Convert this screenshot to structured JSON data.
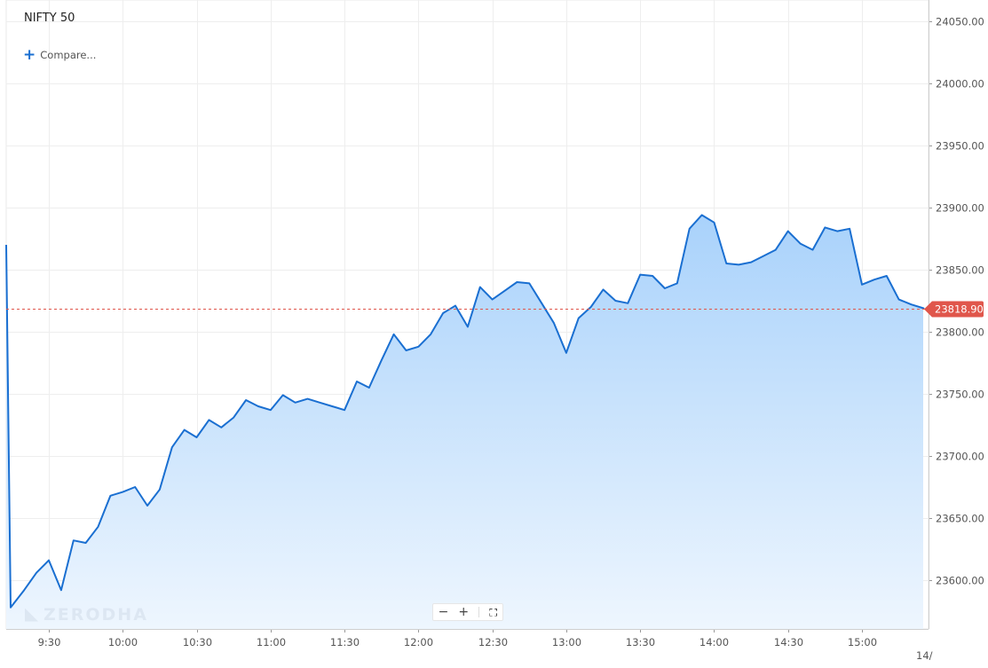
{
  "header": {
    "title": "NIFTY 50",
    "compare_label": "Compare..."
  },
  "watermark": {
    "text": "ZERODHA"
  },
  "zoom_controls": {
    "zoom_out": "−",
    "zoom_in": "+"
  },
  "colors": {
    "line": "#1a6fd1",
    "area_top": "#a9d2fb",
    "price_tag": "#e0564b",
    "grid": "#eeeeee"
  },
  "icons": {
    "compare": "plus-icon",
    "fullscreen": "fullscreen-icon",
    "zoom_out": "minus-icon",
    "zoom_in": "plus-icon"
  },
  "chart_data": {
    "type": "area",
    "title": "NIFTY 50",
    "ylim": [
      23560,
      24070
    ],
    "y_ticks": [
      23600,
      23650,
      23700,
      23750,
      23800,
      23850,
      23900,
      23950,
      24000,
      24050
    ],
    "y_tick_labels": [
      "23600.00",
      "23650.00",
      "23700.00",
      "23750.00",
      "23800.00",
      "23850.00",
      "23900.00",
      "23950.00",
      "24000.00",
      "24050.00"
    ],
    "x_ticks": [
      "9:30",
      "10:00",
      "10:30",
      "11:00",
      "11:30",
      "12:00",
      "12:30",
      "13:00",
      "13:30",
      "14:00",
      "14:30",
      "15:00"
    ],
    "x_tick_times": [
      "09:30",
      "10:00",
      "10:30",
      "11:00",
      "11:30",
      "12:00",
      "12:30",
      "13:00",
      "13:30",
      "14:00",
      "14:30",
      "15:00"
    ],
    "x_next_day_label": "14/",
    "grid": true,
    "current_price": 23818.9,
    "current_price_label": "23818.90",
    "series": [
      {
        "x": [
          "09:15",
          "09:16",
          "09:20",
          "09:25",
          "09:30",
          "09:35",
          "09:40",
          "09:45",
          "09:50",
          "09:55",
          "10:00",
          "10:05",
          "10:10",
          "10:15",
          "10:20",
          "10:25",
          "10:30",
          "10:35",
          "10:40",
          "10:45",
          "10:50",
          "10:55",
          "11:00",
          "11:05",
          "11:10",
          "11:15",
          "11:20",
          "11:25",
          "11:30",
          "11:35",
          "11:40",
          "11:45",
          "11:50",
          "11:55",
          "12:00",
          "12:05",
          "12:10",
          "12:15",
          "12:20",
          "12:25",
          "12:30",
          "12:35",
          "12:40",
          "12:45",
          "12:50",
          "12:55",
          "13:00",
          "13:05",
          "13:10",
          "13:15",
          "13:20",
          "13:25",
          "13:30",
          "13:35",
          "13:40",
          "13:45",
          "13:50",
          "13:55",
          "14:00",
          "14:05",
          "14:10",
          "14:15",
          "14:20",
          "14:25",
          "14:30",
          "14:35",
          "14:40",
          "14:45",
          "14:50",
          "14:55",
          "15:00",
          "15:05",
          "15:10",
          "15:15",
          "15:20",
          "15:25",
          "15:30"
        ],
        "values": [
          23870,
          23578,
          23592,
          23606,
          23616,
          23592,
          23632,
          23630,
          23643,
          23668,
          23671,
          23675,
          23660,
          23673,
          23707,
          23721,
          23715,
          23729,
          23723,
          23731,
          23745,
          23740,
          23737,
          23749,
          23743,
          23746,
          23743,
          23740,
          23737,
          23760,
          23755,
          23777,
          23798,
          23785,
          23788,
          23798,
          23815,
          23821,
          23804,
          23836,
          23826,
          23833,
          23840,
          23839,
          23823,
          23807,
          23783,
          23811,
          23820,
          23834,
          23825,
          23823,
          23846,
          23845,
          23835,
          23839,
          23883,
          23894,
          23888,
          23855,
          23854,
          23856,
          23861,
          23866,
          23881,
          23871,
          23866,
          23884,
          23881,
          23883,
          23838,
          23842,
          23845,
          23826,
          23822,
          23818.9,
          23818.9
        ]
      }
    ]
  }
}
